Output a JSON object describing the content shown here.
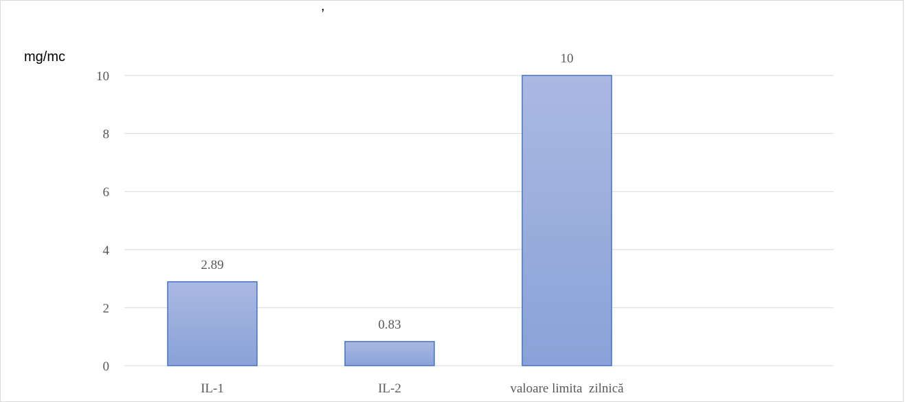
{
  "chart_data": {
    "type": "bar",
    "title_fragment": ",",
    "ylabel": "mg/mc",
    "xlabel": "",
    "categories": [
      "IL-1",
      "IL-2",
      "valoare limita  zilnică"
    ],
    "values": [
      2.89,
      0.83,
      10
    ],
    "data_labels": [
      "2.89",
      "0.83",
      "10"
    ],
    "ylim": [
      0,
      10
    ],
    "yticks": [
      0,
      2,
      4,
      6,
      8,
      10
    ],
    "grid": true,
    "legend": "none",
    "bar_color_top": "#aab9e2",
    "bar_color_bottom": "#8aa2d8",
    "bar_border_color": "#4472c4"
  }
}
